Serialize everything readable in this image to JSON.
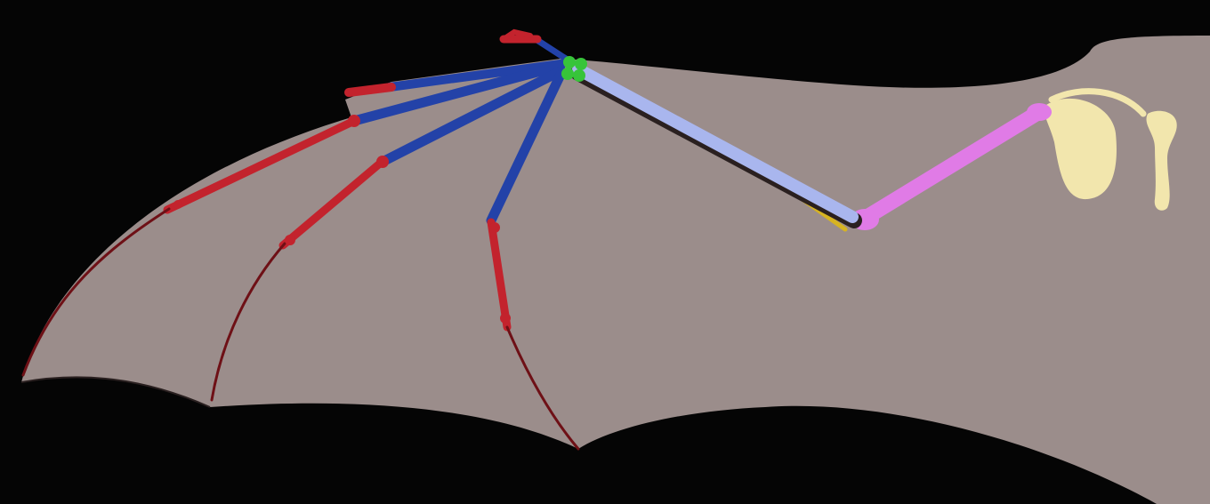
{
  "diagram": {
    "subject": "bat-wing-skeleton",
    "colors": {
      "background": "#050505",
      "membrane": "#9b8d8b",
      "phalanges": "#c3232d",
      "metacarpals": "#2342a8",
      "carpals": "#37c43a",
      "forearm": "#a9b6ee",
      "ulna": "#d6b322",
      "humerus": "#e07be6",
      "shoulder": "#f2e6ad",
      "outline": "#2a2020"
    }
  }
}
